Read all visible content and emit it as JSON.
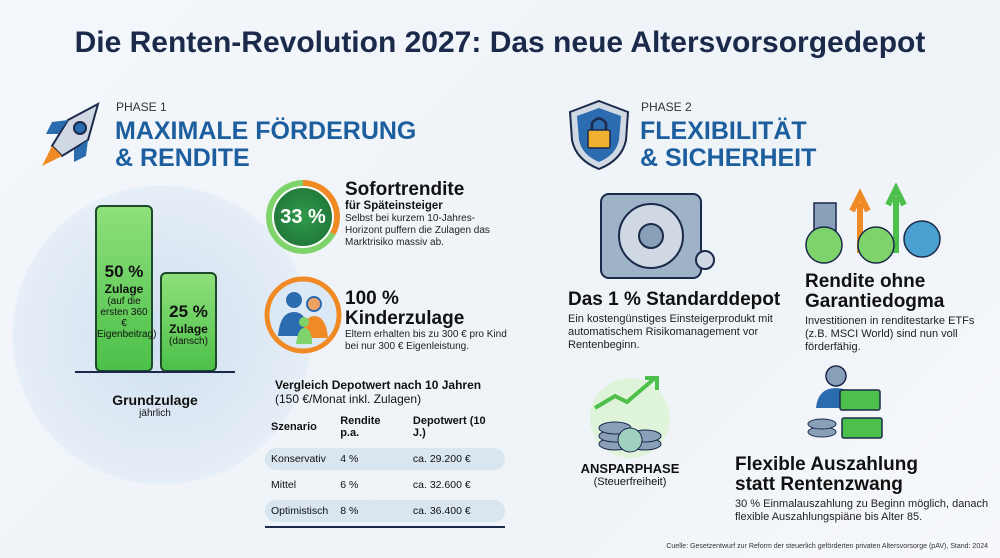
{
  "title": "Die Renten-Revolution 2027: Das neue Altersvorsorgedepot",
  "phase1": {
    "label": "PHASE 1",
    "heading1": "MAXIMALE FÖRDERUNG",
    "heading2": "& RENDITE",
    "bar1": {
      "value": "50 %",
      "label": "Zulage",
      "note": "(auf die ersten 360 € Eigenbeitrag)"
    },
    "bar2": {
      "value": "25 %",
      "label": "Zulage",
      "note": "(dansch)"
    },
    "chart_title": "Grundzulage",
    "chart_sub": "jährlich",
    "sofort": {
      "value": "33 %",
      "title": "Sofortrendite",
      "subtitle": "für Späteinsteiger",
      "desc": "Selbst bei kurzem 10-Jahres-Horizont puffern die Zulagen das Marktrisiko massiv ab."
    },
    "kinder": {
      "title1": "100 %",
      "title2": "Kinderzulage",
      "desc": "Eltern erhalten bis zu 300 € pro Kind bei nur 300 € Eigenleistung."
    },
    "table": {
      "title": "Vergleich Depotwert nach 10 Jahren",
      "subtitle": "(150 €/Monat inkl. Zulagen)",
      "headers": [
        "Szenario",
        "Rendite p.a.",
        "Depotwert (10 J.)"
      ],
      "rows": [
        [
          "Konservativ",
          "4 %",
          "ca. 29.200 €"
        ],
        [
          "Mittel",
          "6 %",
          "ca. 32.600 €"
        ],
        [
          "Optimistisch",
          "8 %",
          "ca. 36.400 €"
        ]
      ]
    }
  },
  "phase2": {
    "label": "PHASE 2",
    "heading1": "FLEXIBILITÄT",
    "heading2": "& SICHERHEIT",
    "depot": {
      "title": "Das 1 % Standarddepot",
      "desc": "Ein kostengünstiges Einsteigerprodukt mit automatischem Risikomanagement vor Rentenbeginn."
    },
    "rendite": {
      "title1": "Rendite ohne",
      "title2": "Garantiedogma",
      "desc": "Investitionen in renditestarke ETFs (z.B. MSCI World) sind nun voll förderfähig."
    },
    "anspar": {
      "title": "ANSPARPHASE",
      "sub": "(Steuerfreiheit)"
    },
    "auszahlung": {
      "title1": "Flexible Auszahlung",
      "title2": "statt Rentenzwang",
      "desc": "30 % Einmalauszahlung zu Beginn möglich, danach flexible Auszahlungspiäne bis Alter 85."
    }
  },
  "source": "Cuelle: Gesetzentwurf zur Reform der steuerlich geförderten privaten Altersvorsorge (pAV), Stand: 2024",
  "colors": {
    "blue": "#1d5f9e",
    "green": "#4cc04a",
    "orange": "#f08a24"
  }
}
